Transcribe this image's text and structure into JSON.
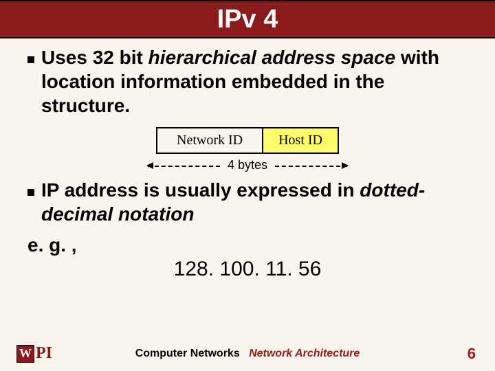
{
  "title": "IPv 4",
  "bullet1": {
    "pre": "Uses 32 bit ",
    "italic1": "hierarchical address space",
    "post": " with location information embedded in the structure."
  },
  "diagram": {
    "left_label": "Network ID",
    "right_label": "Host ID",
    "bytes_label": "4 bytes",
    "left_bg": "#f8f5ed",
    "right_bg": "#ffff66",
    "border_color": "#000000"
  },
  "bullet2": {
    "pre": "IP address is usually expressed in ",
    "italic1": "dotted-decimal notation"
  },
  "eg": "e. g. ,",
  "ip_example": "128. 100. 11. 56",
  "footer": {
    "logo_letter": "W",
    "logo_suffix": "PI",
    "left_text": "Computer Networks",
    "right_text": "Network Architecture",
    "page": "6"
  },
  "colors": {
    "header_bg": "#8b1a1a",
    "page_bg": "#f8f5ed",
    "accent_red": "#a01818"
  }
}
